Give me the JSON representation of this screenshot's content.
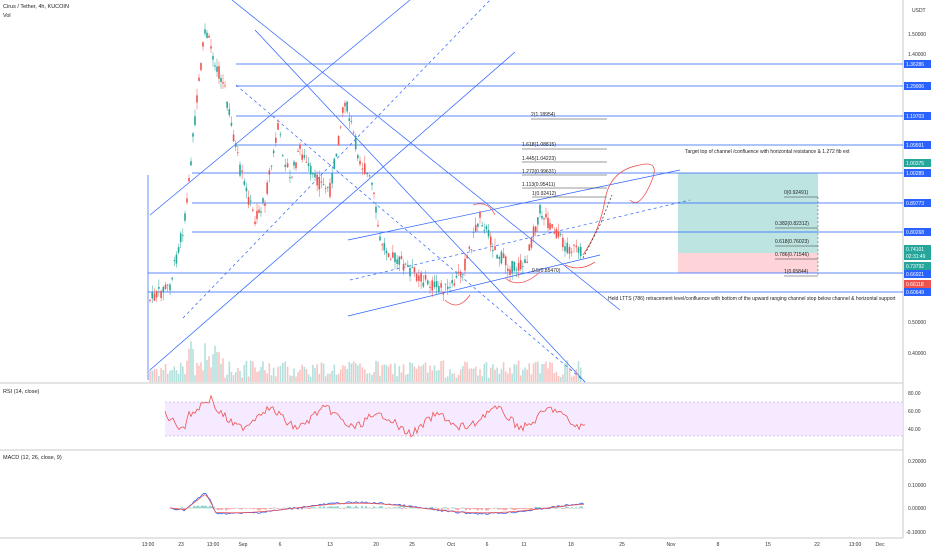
{
  "header": {
    "symbol": "Cirus / Tether, 4h, KUCOIN",
    "vol_label": "Vol",
    "currency": "USDT"
  },
  "price_axis": {
    "ticks": [
      "1.50000",
      "1.40000",
      "1.00000",
      "0.50000",
      "0.40000"
    ],
    "tags": [
      {
        "text": "1.36286",
        "color": "#2962ff"
      },
      {
        "text": "1.29006",
        "color": "#2962ff"
      },
      {
        "text": "1.19703",
        "color": "#2962ff"
      },
      {
        "text": "1.09591",
        "color": "#2962ff"
      },
      {
        "text": "1.00375",
        "color": "#26a69a"
      },
      {
        "text": "1.00289",
        "color": "#2962ff"
      },
      {
        "text": "0.89773",
        "color": "#2962ff"
      },
      {
        "text": "0.80268",
        "color": "#2962ff"
      },
      {
        "text": "0.74101",
        "color": "#26a69a"
      },
      {
        "text": "02:31:49",
        "color": "#26a69a"
      },
      {
        "text": "0.73792",
        "color": "#26a69a"
      },
      {
        "text": "0.66921",
        "color": "#2962ff"
      },
      {
        "text": "0.66118",
        "color": "#ef5350"
      },
      {
        "text": "0.60649",
        "color": "#2962ff"
      }
    ]
  },
  "time_axis": {
    "ticks": [
      "13:00",
      "23",
      "13:00",
      "Sep",
      "6",
      "13",
      "20",
      "25",
      "Oct",
      "6",
      "11",
      "18",
      "25",
      "Nov",
      "8",
      "15",
      "22",
      "13:00",
      "Dec"
    ]
  },
  "fib_levels": [
    {
      "label": "2(1.18954)"
    },
    {
      "label": "1.618(1.08815)"
    },
    {
      "label": "1.445(1.04223)"
    },
    {
      "label": "1.272(0.99631)"
    },
    {
      "label": "1.113(0.95411)"
    },
    {
      "label": "1(0.92412)"
    },
    {
      "label": "0.5(0.85470)"
    }
  ],
  "fib_retracement": [
    {
      "label": "0(0.92491)"
    },
    {
      "label": "0.382(0.82312)"
    },
    {
      "label": "0.618(0.76023)"
    },
    {
      "label": "0.786(0.71546)"
    },
    {
      "label": "1(0.65844)"
    }
  ],
  "annotations": {
    "target": "Target top of channel /confluence with horizontal resistance & 1.272 fib ext",
    "stop": "Held LTTS (786) retracement level/confluence with bottom of the upward ranging channel stop below channel & horizontal support"
  },
  "rsi": {
    "label": "RSI (14, close)",
    "ticks": [
      "80.00",
      "60.00",
      "40.00"
    ]
  },
  "macd": {
    "label": "MACD (12, 26, close, 9)",
    "ticks": [
      "0.20000",
      "0.10000",
      "0.00000",
      "-0.10000"
    ]
  },
  "colors": {
    "up": "#26a69a",
    "down": "#ef5350",
    "line": "#2962ff",
    "rsi": "#ef5350",
    "macd": "#2962ff",
    "signal": "#ef5350",
    "rsi_band": "#f3e5ff",
    "target": "#b2dfdb",
    "stop": "#ffcdd2"
  },
  "chart_data": {
    "type": "line",
    "title": "Cirus / Tether, 4h, KUCOIN",
    "y_unit": "USDT",
    "x": [
      "13:00",
      "23",
      "13:00",
      "Sep",
      "6",
      "13",
      "20",
      "25",
      "Oct",
      "6",
      "11",
      "18"
    ],
    "series": [
      {
        "values": [
          0.5,
          0.62,
          1.45,
          1.12,
          1.05,
          0.95,
          0.78,
          0.68,
          0.63,
          0.78,
          0.7,
          0.73
        ]
      }
    ],
    "ylim": [
      0.4,
      1.55
    ]
  }
}
